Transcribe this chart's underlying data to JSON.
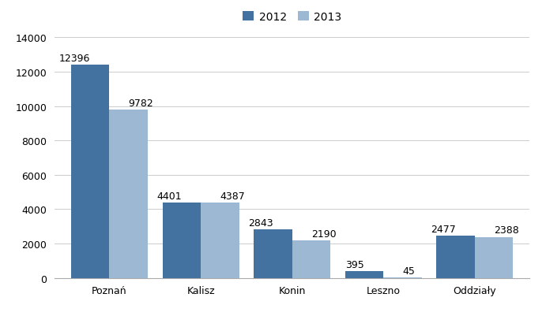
{
  "categories": [
    "Poznań",
    "Kalisz",
    "Konin",
    "Leszno",
    "Oddziały"
  ],
  "values_2012": [
    12396,
    4401,
    2843,
    395,
    2477
  ],
  "values_2013": [
    9782,
    4387,
    2190,
    45,
    2388
  ],
  "color_2012": "#4472A0",
  "color_2013": "#9DB8D2",
  "legend_labels": [
    "2012",
    "2013"
  ],
  "ylim": [
    0,
    14000
  ],
  "yticks": [
    0,
    2000,
    4000,
    6000,
    8000,
    10000,
    12000,
    14000
  ],
  "bar_width": 0.42,
  "label_fontsize": 9,
  "tick_fontsize": 9,
  "legend_fontsize": 10,
  "background_color": "#FFFFFF"
}
